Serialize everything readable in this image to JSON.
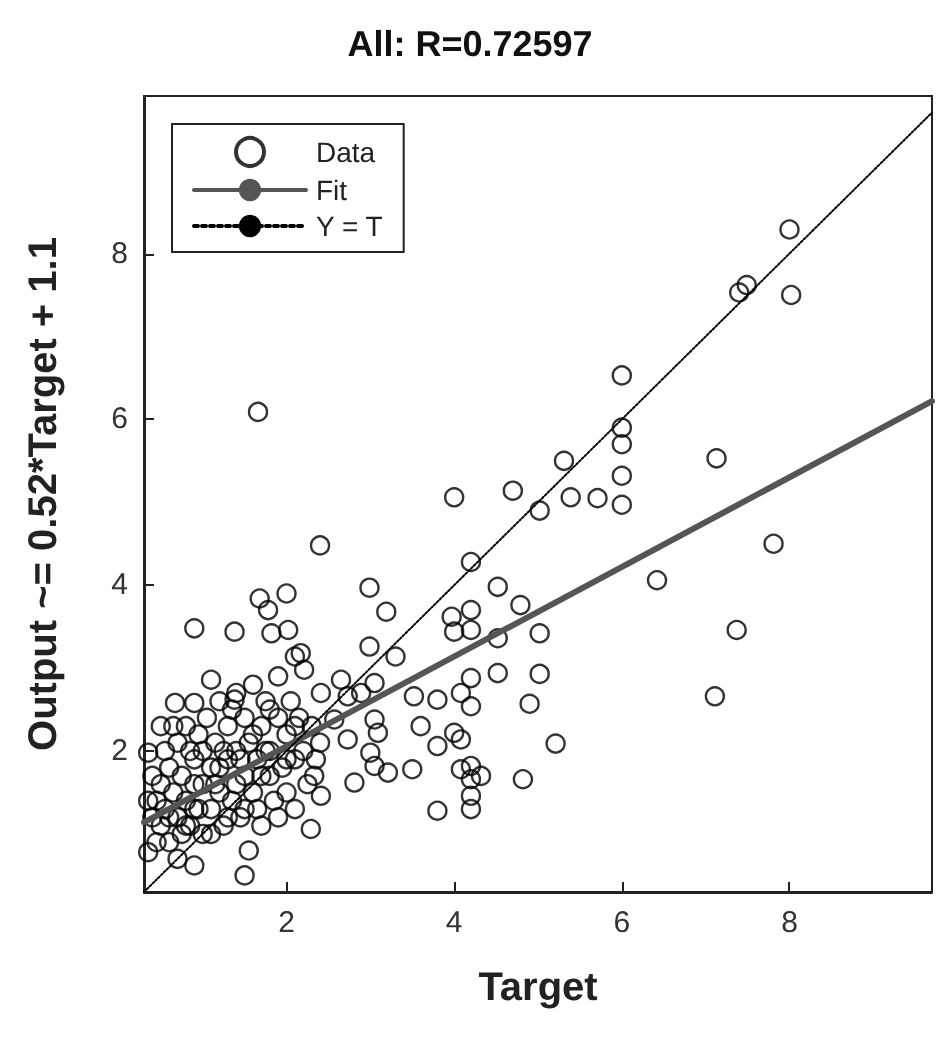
{
  "chart_data": {
    "type": "scatter",
    "title": "All: R=0.72597",
    "xlabel": "Target",
    "ylabel": "Output ~= 0.52*Target + 1.1",
    "xlim": [
      0.3,
      9.7
    ],
    "ylim": [
      0.3,
      9.9
    ],
    "xticks": [
      2,
      4,
      6,
      8
    ],
    "yticks": [
      2,
      4,
      6,
      8
    ],
    "grid": false,
    "legend": "top left",
    "marker": "circle",
    "series": [
      {
        "name": "Data",
        "color": "#000000",
        "x": [
          8.0,
          7.49,
          7.4,
          8.02,
          6.0,
          1.66,
          6.0,
          6.0,
          6.0,
          6.0,
          5.31,
          5.39,
          5.71,
          4.7,
          5.02,
          4.0,
          7.13,
          7.81,
          6.42,
          7.37,
          7.11,
          2.4,
          4.2,
          4.52,
          4.79,
          5.02,
          5.02,
          4.52,
          4.9,
          5.21,
          4.82,
          4.2,
          4.2,
          4.32,
          3.8,
          4.2,
          2.99,
          3.19,
          3.3,
          2.99,
          3.97,
          4.2,
          4.2,
          4.0,
          4.52,
          4.2,
          4.08,
          4.2,
          4.0,
          4.08,
          4.08,
          4.2,
          3.52,
          3.8,
          3.6,
          3.8,
          3.5,
          3.21,
          2.81,
          2.29,
          0.9,
          1.38,
          1.68,
          2.0,
          1.78,
          1.82,
          2.02,
          2.1,
          2.21,
          2.17,
          1.1,
          1.38,
          0.9,
          0.67,
          0.35,
          0.35,
          1.5,
          0.9,
          2.41,
          2.65,
          2.73,
          3.05,
          2.89,
          2.57,
          2.73,
          3.05,
          3.09,
          3.0,
          3.05,
          2.41,
          2.33,
          0.4,
          0.45,
          0.5,
          0.5,
          0.55,
          0.6,
          0.6,
          0.65,
          0.7,
          0.7,
          0.75,
          0.75,
          0.8,
          0.8,
          0.85,
          0.9,
          0.9,
          0.95,
          1.0,
          1.0,
          1.05,
          1.1,
          1.1,
          1.15,
          1.2,
          1.2,
          1.25,
          1.3,
          1.3,
          1.35,
          1.4,
          1.4,
          1.45,
          1.5,
          1.5,
          1.55,
          1.55,
          1.6,
          1.6,
          1.65,
          1.7,
          1.7,
          1.75,
          1.8,
          1.8,
          1.85,
          1.9,
          1.9,
          1.95,
          2.0,
          2.0,
          2.05,
          2.1,
          2.1,
          2.15,
          2.2,
          2.25,
          2.3,
          2.35,
          2.4,
          0.4,
          0.45,
          0.55,
          0.65,
          0.35,
          0.5,
          0.6,
          0.7,
          0.8,
          0.9,
          1.0,
          1.1,
          1.2,
          1.3,
          1.4,
          1.5,
          1.6,
          1.7,
          1.8,
          1.9,
          2.0,
          2.1,
          1.25,
          1.35,
          0.95,
          0.85,
          1.45,
          1.65,
          1.75,
          1.15
        ],
        "values": [
          8.29,
          7.62,
          7.53,
          7.5,
          6.53,
          6.09,
          5.9,
          5.7,
          5.32,
          4.97,
          5.5,
          5.06,
          5.05,
          5.14,
          4.9,
          5.06,
          5.53,
          4.5,
          4.06,
          3.46,
          2.66,
          4.48,
          4.28,
          3.98,
          3.76,
          3.42,
          2.93,
          2.94,
          2.57,
          2.09,
          1.66,
          1.66,
          1.46,
          1.7,
          1.28,
          1.3,
          3.97,
          3.68,
          3.14,
          3.26,
          3.62,
          3.7,
          3.46,
          3.44,
          3.36,
          2.88,
          2.7,
          2.54,
          2.22,
          2.14,
          1.78,
          1.82,
          2.66,
          2.62,
          2.3,
          2.06,
          1.78,
          1.74,
          1.62,
          1.06,
          3.48,
          3.44,
          3.84,
          3.9,
          3.7,
          3.42,
          3.46,
          3.14,
          2.98,
          3.18,
          2.86,
          2.62,
          2.58,
          2.58,
          1.98,
          0.78,
          0.5,
          0.62,
          2.7,
          2.86,
          2.66,
          2.82,
          2.7,
          2.38,
          2.14,
          2.38,
          2.22,
          1.98,
          1.82,
          1.46,
          1.7,
          1.2,
          1.4,
          1.1,
          1.6,
          1.3,
          0.9,
          1.8,
          1.5,
          1.2,
          2.1,
          1.0,
          1.7,
          1.4,
          2.3,
          1.1,
          1.9,
          1.3,
          2.2,
          1.6,
          1.0,
          2.4,
          1.3,
          1.8,
          2.1,
          1.5,
          2.6,
          1.1,
          1.9,
          2.3,
          1.4,
          2.0,
          2.7,
          1.2,
          1.7,
          2.4,
          0.8,
          2.1,
          1.5,
          2.8,
          1.9,
          2.3,
          1.1,
          2.6,
          1.7,
          2.0,
          1.4,
          2.4,
          2.9,
          1.8,
          2.2,
          1.5,
          2.6,
          1.9,
          1.3,
          2.4,
          2.0,
          1.6,
          2.3,
          1.9,
          2.1,
          1.7,
          0.9,
          2.0,
          2.3,
          1.4,
          2.3,
          1.2,
          0.7,
          1.1,
          1.6,
          2.0,
          1.0,
          1.8,
          1.2,
          1.6,
          1.3,
          2.2,
          1.7,
          2.5,
          1.2,
          1.9,
          2.3,
          2.0,
          2.5,
          1.3,
          2.0,
          1.9,
          1.3,
          2.0,
          1.6
        ]
      },
      {
        "name": "Fit",
        "type": "line",
        "color": "#555555",
        "marker": "none",
        "line_style": "solid",
        "x": [
          0.3,
          9.7
        ],
        "values": [
          1.14,
          6.22
        ]
      },
      {
        "name": "Y = T",
        "type": "line",
        "color": "#000000",
        "marker": "none",
        "line_style": "dotted",
        "x": [
          0.3,
          9.7
        ],
        "values": [
          0.3,
          9.7
        ]
      }
    ]
  }
}
